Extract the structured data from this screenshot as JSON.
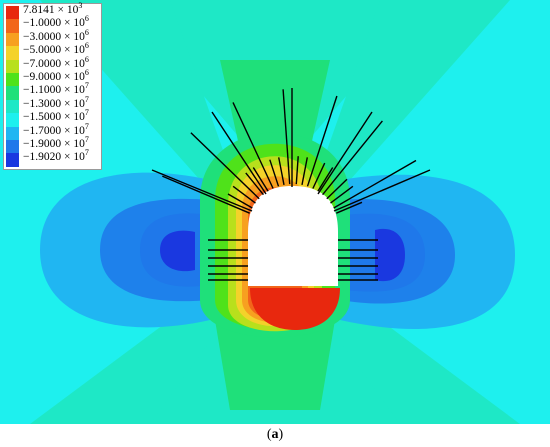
{
  "legend": {
    "entries": [
      {
        "mantissa": "7.8141",
        "exponent": "3",
        "color": "#e8280e"
      },
      {
        "mantissa": "−1.0000",
        "exponent": "6",
        "color": "#f2661a"
      },
      {
        "mantissa": "−3.0000",
        "exponent": "6",
        "color": "#f7a020"
      },
      {
        "mantissa": "−5.0000",
        "exponent": "6",
        "color": "#f4d22a"
      },
      {
        "mantissa": "−7.0000",
        "exponent": "6",
        "color": "#b8e01c"
      },
      {
        "mantissa": "−9.0000",
        "exponent": "6",
        "color": "#4fe21a"
      },
      {
        "mantissa": "−1.1000",
        "exponent": "7",
        "color": "#1fe07a"
      },
      {
        "mantissa": "−1.3000",
        "exponent": "7",
        "color": "#1ee8c6"
      },
      {
        "mantissa": "−1.5000",
        "exponent": "7",
        "color": "#1ef0ee"
      },
      {
        "mantissa": "−1.7000",
        "exponent": "7",
        "color": "#20b6f2"
      },
      {
        "mantissa": "−1.9000",
        "exponent": "7",
        "color": "#1f78ea"
      },
      {
        "mantissa": "−1.9020",
        "exponent": "7",
        "color": "#1a38e0"
      }
    ]
  },
  "caption": {
    "open": "(",
    "label": "a",
    "close": ")"
  }
}
